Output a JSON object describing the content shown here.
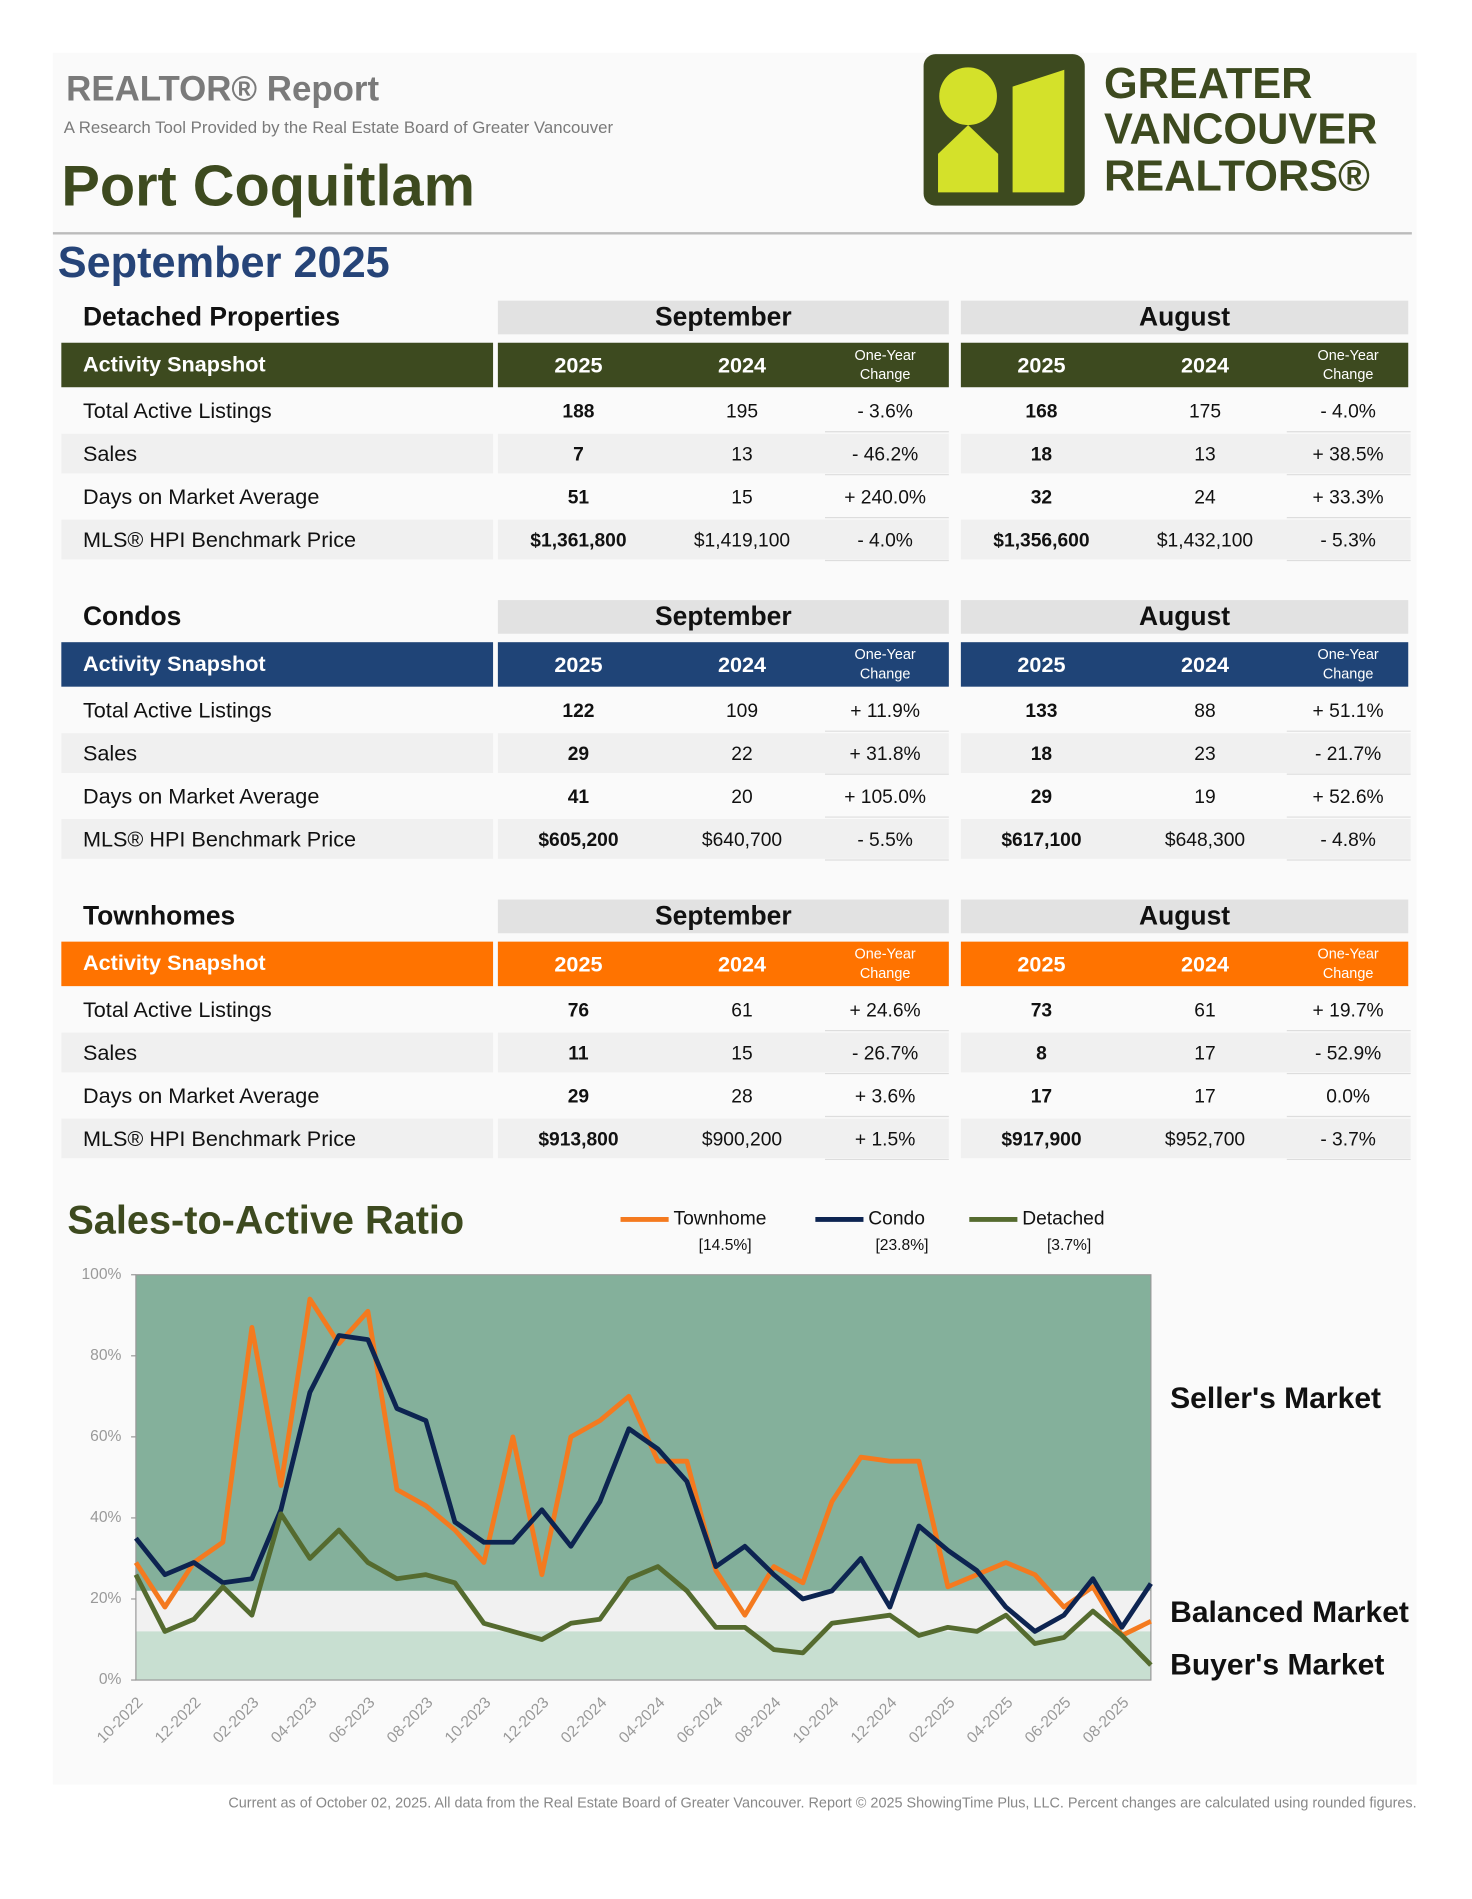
{
  "header": {
    "title": "REALTOR® Report",
    "subtitle": "A Research Tool Provided by the Real Estate Board of Greater Vancouver",
    "location": "Port Coquitlam",
    "period": "September 2025"
  },
  "logo": {
    "lines": [
      "GREATER",
      "VANCOUVER",
      "REALTORS®"
    ]
  },
  "sections": [
    {
      "title": "Detached Properties",
      "color": "#3d4a1f",
      "periods": [
        "September",
        "August"
      ],
      "snapshot": "Activity Snapshot",
      "columns": [
        "2025",
        "2024",
        "One-Year",
        "Change",
        "2025",
        "2024",
        "One-Year",
        "Change"
      ],
      "rows": [
        [
          "Total Active Listings",
          "188",
          "195",
          "- 3.6%",
          "168",
          "175",
          "- 4.0%"
        ],
        [
          "Sales",
          "7",
          "13",
          "- 46.2%",
          "18",
          "13",
          "+ 38.5%"
        ],
        [
          "Days on Market Average",
          "51",
          "15",
          "+ 240.0%",
          "32",
          "24",
          "+ 33.3%"
        ],
        [
          "MLS® HPI Benchmark Price",
          "$1,361,800",
          "$1,419,100",
          "- 4.0%",
          "$1,356,600",
          "$1,432,100",
          "- 5.3%"
        ]
      ]
    },
    {
      "title": "Condos",
      "color": "#1f4477",
      "periods": [
        "September",
        "August"
      ],
      "snapshot": "Activity Snapshot",
      "columns": [
        "2025",
        "2024",
        "One-Year",
        "Change",
        "2025",
        "2024",
        "One-Year",
        "Change"
      ],
      "rows": [
        [
          "Total Active Listings",
          "122",
          "109",
          "+ 11.9%",
          "133",
          "88",
          "+ 51.1%"
        ],
        [
          "Sales",
          "29",
          "22",
          "+ 31.8%",
          "18",
          "23",
          "- 21.7%"
        ],
        [
          "Days on Market Average",
          "41",
          "20",
          "+ 105.0%",
          "29",
          "19",
          "+ 52.6%"
        ],
        [
          "MLS® HPI Benchmark Price",
          "$605,200",
          "$640,700",
          "- 5.5%",
          "$617,100",
          "$648,300",
          "- 4.8%"
        ]
      ]
    },
    {
      "title": "Townhomes",
      "color": "#ff7300",
      "periods": [
        "September",
        "August"
      ],
      "snapshot": "Activity Snapshot",
      "columns": [
        "2025",
        "2024",
        "One-Year",
        "Change",
        "2025",
        "2024",
        "One-Year",
        "Change"
      ],
      "rows": [
        [
          "Total Active Listings",
          "76",
          "61",
          "+ 24.6%",
          "73",
          "61",
          "+ 19.7%"
        ],
        [
          "Sales",
          "11",
          "15",
          "- 26.7%",
          "8",
          "17",
          "- 52.9%"
        ],
        [
          "Days on Market Average",
          "29",
          "28",
          "+ 3.6%",
          "17",
          "17",
          "0.0%"
        ],
        [
          "MLS® HPI Benchmark Price",
          "$913,800",
          "$900,200",
          "+ 1.5%",
          "$917,900",
          "$952,700",
          "- 3.7%"
        ]
      ]
    }
  ],
  "chart_data": {
    "type": "line",
    "title": "Sales-to-Active Ratio",
    "categories": [
      "10-2022",
      null,
      "12-2022",
      null,
      "02-2023",
      null,
      "04-2023",
      null,
      "06-2023",
      null,
      "08-2023",
      null,
      "10-2023",
      null,
      "12-2023",
      null,
      "02-2024",
      null,
      "04-2024",
      null,
      "06-2024",
      null,
      "08-2024",
      null,
      "10-2024",
      null,
      "12-2024",
      null,
      "02-2025",
      null,
      "04-2025",
      null,
      "06-2025",
      null,
      "08-2025",
      null
    ],
    "series": [
      {
        "name": "Townhome",
        "color": "#f47a1f",
        "latest_label": "[14.5%]",
        "values": [
          29,
          18,
          29,
          34,
          87,
          48,
          94,
          83,
          91,
          47,
          43,
          37,
          29,
          60,
          26,
          60,
          64,
          70,
          54,
          54,
          27,
          16,
          28,
          24,
          44,
          55,
          54,
          54,
          23,
          26,
          29,
          26,
          18,
          23,
          11,
          14.5
        ]
      },
      {
        "name": "Condo",
        "color": "#0d2451",
        "latest_label": "[23.8%]",
        "values": [
          35,
          26,
          29,
          24,
          25,
          42,
          71,
          85,
          84,
          67,
          64,
          39,
          34,
          34,
          42,
          33,
          44,
          62,
          57,
          49,
          28,
          33,
          26,
          20,
          22,
          30,
          18,
          38,
          32,
          27,
          18,
          12,
          16,
          25,
          13,
          23.8
        ]
      },
      {
        "name": "Detached",
        "color": "#556b2f",
        "latest_label": "[3.7%]",
        "values": [
          26,
          12,
          15,
          23,
          16,
          41,
          30,
          37,
          29,
          25,
          26,
          24,
          14,
          12,
          10,
          14,
          15,
          25,
          28,
          22,
          13,
          13,
          7.5,
          6.7,
          14,
          15,
          16,
          11,
          13,
          12,
          16,
          9,
          10.5,
          17,
          11,
          3.7
        ]
      }
    ],
    "bands": [
      {
        "label": "Seller's Market",
        "from": 22,
        "to": 100,
        "color": "#84b09b"
      },
      {
        "label": "Balanced Market",
        "from": 12,
        "to": 22,
        "color": "#f1f1f1"
      },
      {
        "label": "Buyer's Market",
        "from": 0,
        "to": 12,
        "color": "#c8dfd1"
      }
    ],
    "ylim": [
      0,
      100
    ],
    "yticks": [
      {
        "value": 0,
        "label": "0%"
      },
      {
        "value": 20,
        "label": "20%"
      },
      {
        "value": 40,
        "label": "40%"
      },
      {
        "value": 60,
        "label": "60%"
      },
      {
        "value": 80,
        "label": "80%"
      },
      {
        "value": 100,
        "label": "100%"
      }
    ]
  },
  "footer": "Current as of October 02, 2025. All data from the Real Estate Board of Greater Vancouver.  Report © 2025 ShowingTime Plus, LLC. Percent changes are calculated using rounded figures."
}
